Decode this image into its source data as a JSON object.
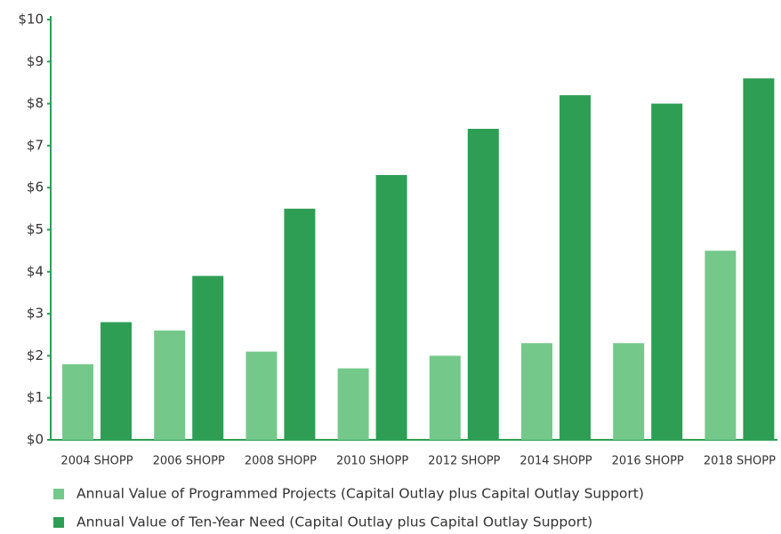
{
  "chart_data": {
    "type": "bar",
    "categories": [
      "2004 SHOPP",
      "2006 SHOPP",
      "2008 SHOPP",
      "2010 SHOPP",
      "2012 SHOPP",
      "2014 SHOPP",
      "2016 SHOPP",
      "2018 SHOPP"
    ],
    "series": [
      {
        "name": "Annual Value of Programmed Projects (Capital Outlay plus Capital Outlay Support)",
        "color": "#74c98a",
        "values": [
          1.8,
          2.6,
          2.1,
          1.7,
          2.0,
          2.3,
          2.3,
          4.5
        ]
      },
      {
        "name": "Annual Value of Ten-Year Need (Capital Outlay plus Capital Outlay Support)",
        "color": "#2e9e55",
        "values": [
          2.8,
          3.9,
          5.5,
          6.3,
          7.4,
          8.2,
          8.0,
          8.6
        ]
      }
    ],
    "ylim": [
      0,
      10
    ],
    "yticks": [
      {
        "value": 0,
        "label": "$0"
      },
      {
        "value": 1,
        "label": "$1"
      },
      {
        "value": 2,
        "label": "$2"
      },
      {
        "value": 3,
        "label": "$3"
      },
      {
        "value": 4,
        "label": "$4"
      },
      {
        "value": 5,
        "label": "$5"
      },
      {
        "value": 6,
        "label": "$6"
      },
      {
        "value": 7,
        "label": "$7"
      },
      {
        "value": 8,
        "label": "$8"
      },
      {
        "value": 9,
        "label": "$9"
      },
      {
        "value": 10,
        "label": "$10"
      }
    ]
  }
}
